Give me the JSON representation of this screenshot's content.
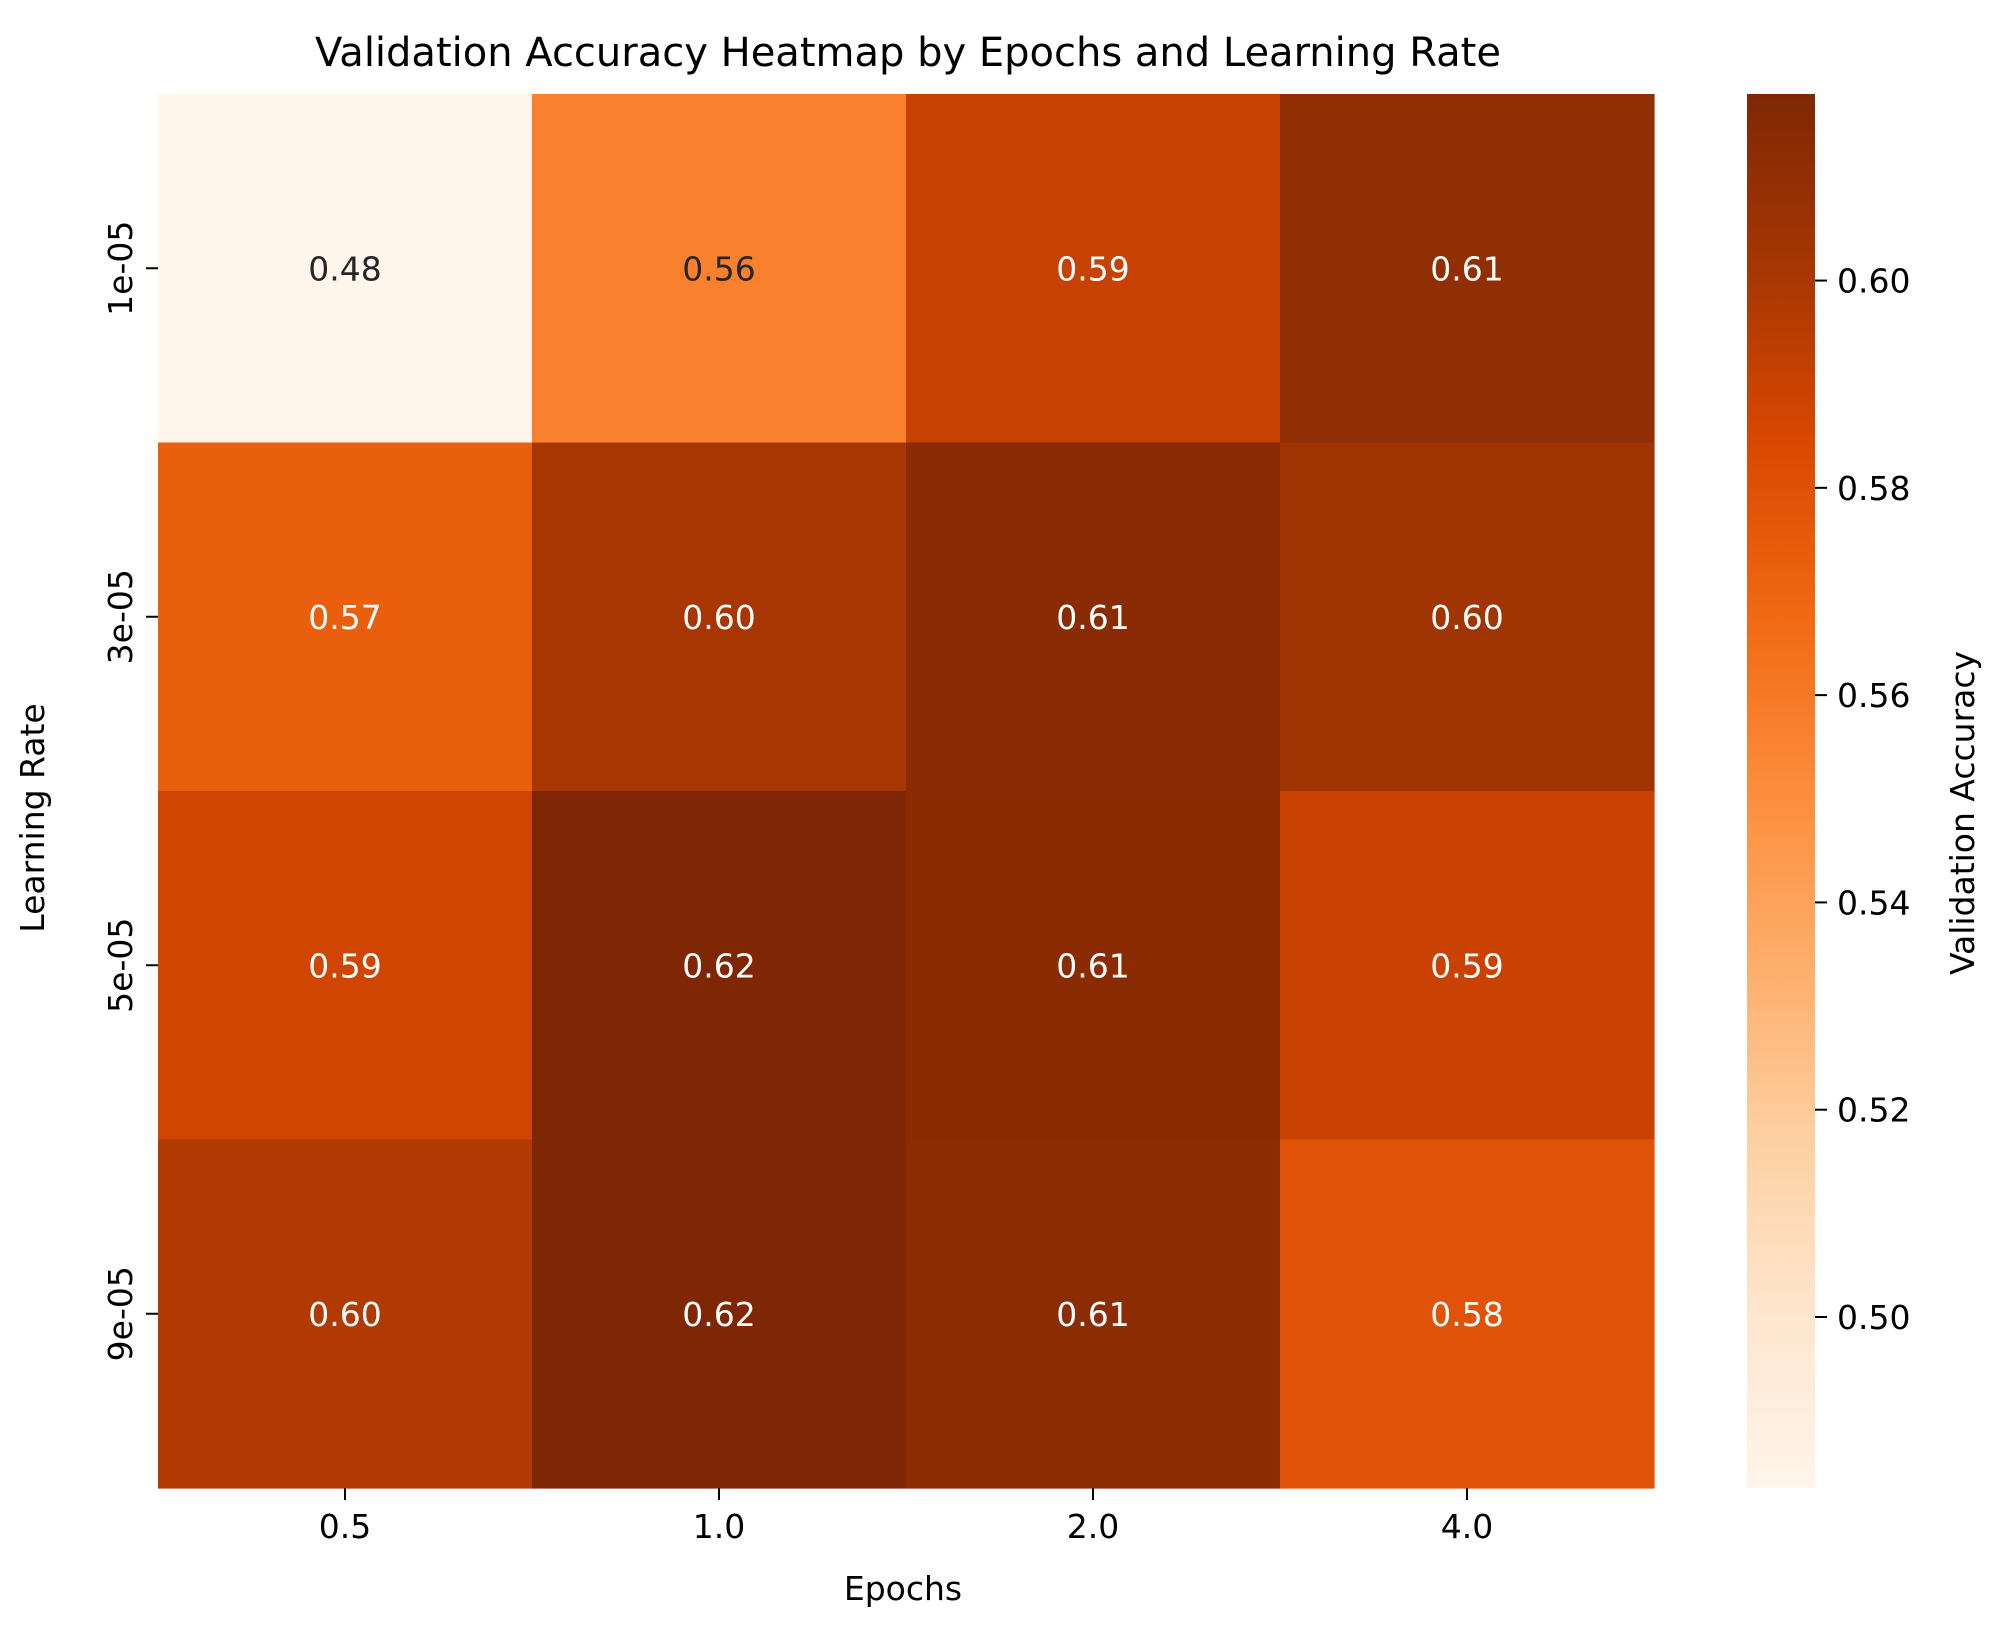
{
  "chart_data": {
    "type": "heatmap",
    "title": "Validation Accuracy Heatmap by Epochs and Learning Rate",
    "xlabel": "Epochs",
    "ylabel": "Learning Rate",
    "x_categories": [
      "0.5",
      "1.0",
      "2.0",
      "4.0"
    ],
    "y_categories": [
      "1e-05",
      "3e-05",
      "5e-05",
      "9e-05"
    ],
    "values": [
      [
        0.4835,
        0.5565,
        0.5905,
        0.6105
      ],
      [
        0.5728,
        0.6008,
        0.6135,
        0.6032
      ],
      [
        0.5872,
        0.618,
        0.613,
        0.5898
      ],
      [
        0.5975,
        0.6178,
        0.6128,
        0.5792
      ]
    ],
    "value_labels": [
      [
        "0.48",
        "0.56",
        "0.59",
        "0.61"
      ],
      [
        "0.57",
        "0.60",
        "0.61",
        "0.60"
      ],
      [
        "0.59",
        "0.62",
        "0.61",
        "0.59"
      ],
      [
        "0.60",
        "0.62",
        "0.61",
        "0.58"
      ]
    ],
    "colorbar": {
      "label": "Validation Accuracy",
      "range": [
        0.4835,
        0.618
      ],
      "ticks": [
        0.5,
        0.52,
        0.54,
        0.56,
        0.58,
        0.6
      ],
      "tick_labels": [
        "0.50",
        "0.52",
        "0.54",
        "0.56",
        "0.58",
        "0.60"
      ],
      "colormap": "Oranges"
    },
    "text_color_light": "#ffffff",
    "text_color_dark": "#262626"
  }
}
